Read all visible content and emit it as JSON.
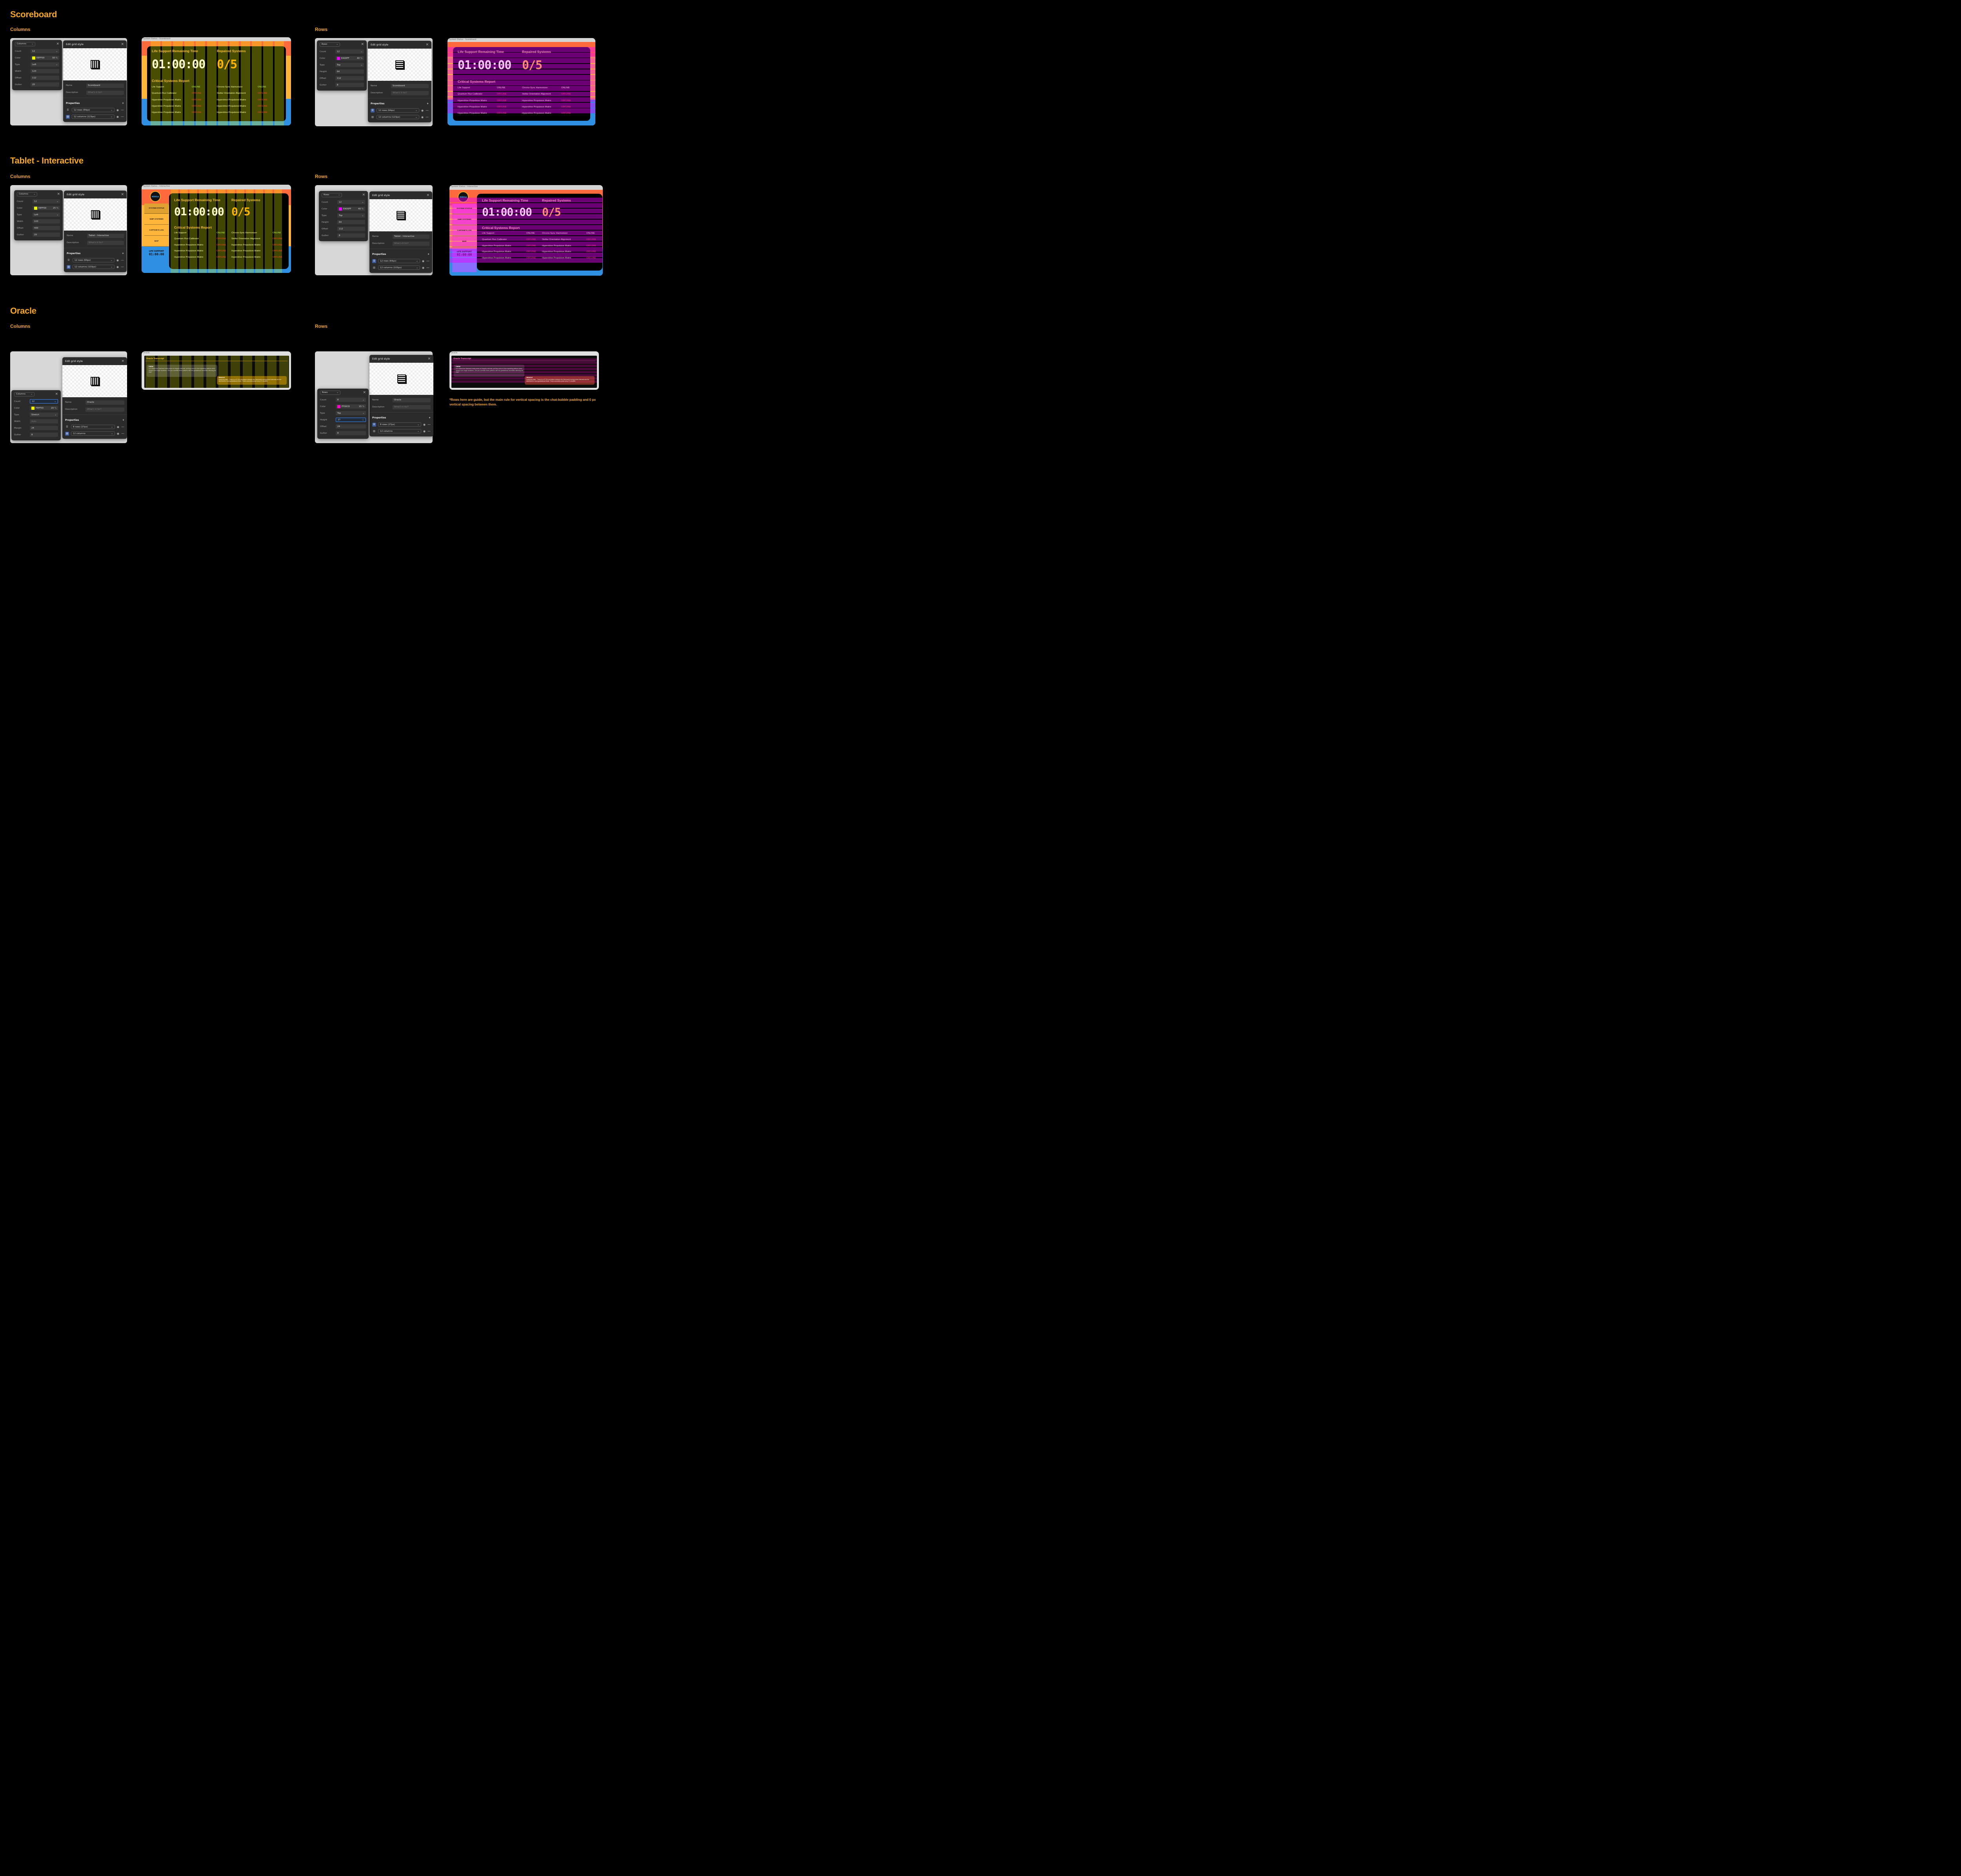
{
  "sections": {
    "scoreboard": "Scoreboard",
    "tablet": "Tablet - Interactive",
    "oracle": "Oracle"
  },
  "sub": {
    "columns": "Columns",
    "rows": "Rows"
  },
  "common": {
    "edit_title": "Edit grid style",
    "name_label": "Name",
    "desc_label": "Description",
    "desc_placeholder": "What's it for?",
    "properties": "Properties",
    "count_label": "Count",
    "color_label": "Color",
    "type_label": "Type",
    "width_label": "Width",
    "height_label": "Height",
    "offset_label": "Offset",
    "margin_label": "Margin",
    "gutter_label": "Gutter",
    "pct": "%",
    "plus": "+",
    "close": "×"
  },
  "panels": {
    "sb_cols": {
      "mode": "Columns",
      "count": "12",
      "color": "EEFF00",
      "opacity": "30",
      "swatch": "#eeff00",
      "type": "Left",
      "size": "123",
      "offset": "112",
      "gutter": "20",
      "name": "Scoreboard",
      "p1": "12 rows (64px)",
      "p2": "12 columns (123px)"
    },
    "sb_rows": {
      "mode": "Rows",
      "count": "12",
      "color": "EA00FF",
      "opacity": "40",
      "swatch": "#ea00ff",
      "type": "Top",
      "size": "64",
      "offset": "112",
      "gutter": "8",
      "name": "Scoreboard",
      "p1": "12 rows (64px)",
      "p2": "12 columns (123px)"
    },
    "tb_cols": {
      "mode": "Columns",
      "count": "12",
      "color": "EEFF00",
      "opacity": "25",
      "swatch": "#eeff00",
      "type": "Left",
      "size": "103",
      "offset": "400",
      "gutter": "20",
      "name": "Tablet - Interactive",
      "p1": "12 rows (64px)",
      "p2": "12 columns (103px)"
    },
    "tb_rows": {
      "mode": "Rows",
      "count": "12",
      "color": "EA00FF",
      "opacity": "40",
      "swatch": "#ea00ff",
      "type": "Top",
      "size": "64",
      "offset": "112",
      "gutter": "8",
      "name": "Tablet - Interactive",
      "p1": "12 rows (64px)",
      "p2": "12 columns (103px)"
    },
    "or_cols": {
      "mode": "Columns",
      "count": "12",
      "color": "F6FF00",
      "opacity": "20",
      "swatch": "#f6ff00",
      "type": "Stretch",
      "size": "Auto",
      "offset": "24",
      "gutter": "8",
      "name": "Oracle",
      "p1": "8 rows (27px)",
      "p2": "12 columns"
    },
    "or_rows": {
      "mode": "Rows",
      "count": "8",
      "color": "FF00C8",
      "opacity": "15",
      "swatch": "#ff00c8",
      "type": "Top",
      "size": "27",
      "offset": "24",
      "gutter": "8",
      "name": "Oracle",
      "p1": "8 rows (27px)",
      "p2": "12 columns"
    }
  },
  "screens": {
    "sb_label": "System Status - Scoreboard",
    "tb_label": "System Status - Interactive",
    "or_label": "Oracle",
    "life_title": "Life Support Remaining Time",
    "repaired_title": "Repaired Systems",
    "timer": "01:00:00",
    "repaired": "0/5",
    "report_title": "Critical Systems Report",
    "online": "ONLINE",
    "offline": "OFFLINE",
    "left_systems": [
      "Life Support",
      "Quantum Flux Calibrator",
      "Hyperdrive Propulsion Matrix",
      "Hyperdrive Propulsion Matrix",
      "Hyperdrive Propulsion Matrix"
    ],
    "left_status": [
      "ONLINE",
      "OFFLINE",
      "OFFLINE",
      "OFFLINE",
      "OFFLINE"
    ],
    "right_systems": [
      "Chrono-Sync Harmonizer",
      "Stellar Orientation Alignment",
      "Hyperdrive Propulsion Matrix",
      "Hyperdrive Propulsion Matrix",
      "Hyperdrive Propulsion Matrix"
    ],
    "right_status": [
      "ONLINE",
      "OFFLINE",
      "OFFLINE",
      "OFFLINE",
      "OFFLINE"
    ],
    "nav": [
      "SYSTEM STATUS",
      "SHIP SYSTEMS",
      "CAPTAIN'S LOG",
      "MAP"
    ],
    "nav_life": "LIFE SUPPORT",
    "nav_timer": "01:00:00",
    "logo_text": "NEBULA",
    "oracle_title": "Oracle Transcript",
    "crew_label": "CREW",
    "crew_msg": "I've noticed the Starheart emits pulses at irregular intervals, yet they seem to form repeating patterns when viewed over longer durations. Can you correlate these patterns with the gravitational anomalies affecting the ship?",
    "oracle_label": "ORACLE",
    "oracle_msg": "Analyzing data... There is a 97.3% correlation between the Starheart's energy pulse intervals and the distortions in local gravitational fields. These anomalies peak every 37 minutes."
  },
  "note": "*Rows here are guide, but the main rule for vertical spacing is the chat-bubble padding and 0 px vertical spacing between them.",
  "colors": {
    "accent": "#f5a623",
    "online": "#9bff2e",
    "offline": "#ff4a1c",
    "timer": "#ffffff",
    "repaired": "#ffb400"
  }
}
